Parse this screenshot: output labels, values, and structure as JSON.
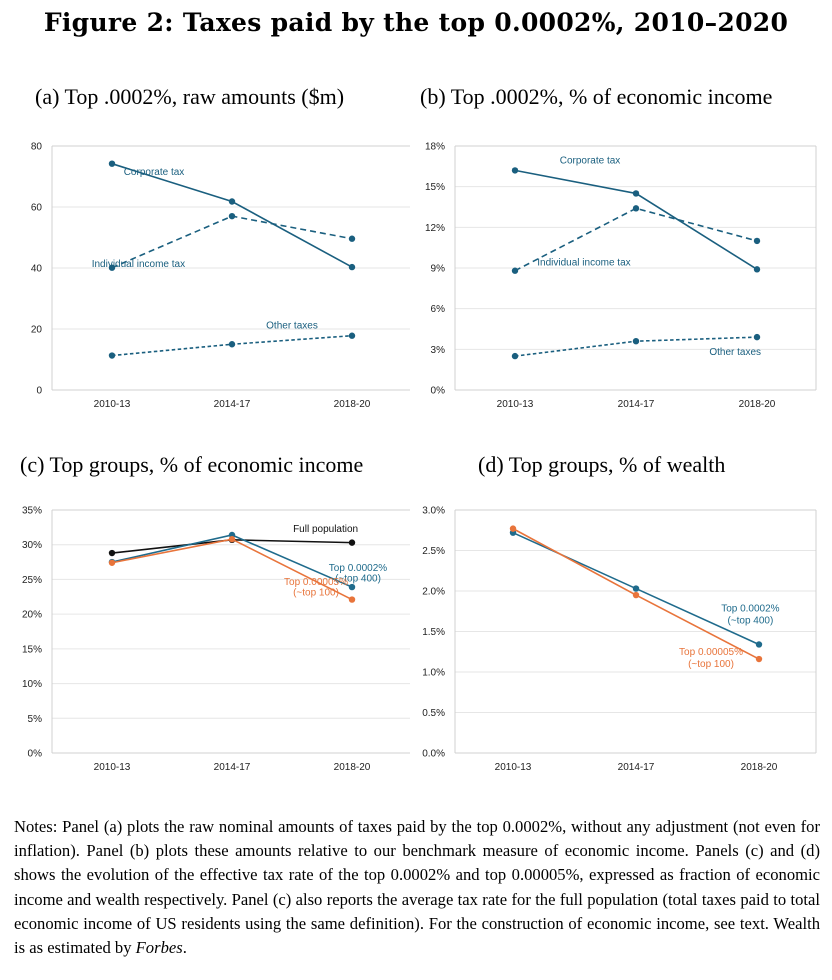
{
  "figure": {
    "title": "Figure 2: Taxes paid by the top 0.0002%, 2010–2020",
    "notes_prefix": "Notes: Panel (a) plots the raw nominal amounts of taxes paid by the top 0.0002%, without any adjustment (not even for inflation). Panel (b) plots these amounts relative to our benchmark measure of economic income. Panels (c) and (d) shows the evolution of the effective tax rate of the top 0.0002% and top 0.00005%, expressed as fraction of economic income and wealth respectively. Panel (c) also reports the average tax rate for the full population (total taxes paid to total economic income of US residents using the same definition). For the construction of economic income, see text. Wealth is as estimated by ",
    "notes_italic": "Forbes",
    "notes_suffix": "."
  },
  "colors": {
    "teal": "#1a5f7f",
    "blue": "#1f6b8c",
    "orange": "#e8743b",
    "black": "#111111",
    "grid": "#e6e6e6",
    "axis": "#d0d0d0"
  },
  "chart_data": [
    {
      "id": "a",
      "type": "line",
      "title": "(a) Top .0002%, raw amounts ($m)",
      "categories": [
        "2010-13",
        "2014-17",
        "2018-20"
      ],
      "ylim": [
        0,
        80
      ],
      "yticks": [
        0,
        20,
        40,
        60,
        80
      ],
      "ytick_labels": [
        "0",
        "20",
        "40",
        "60",
        "80"
      ],
      "grid": true,
      "series": [
        {
          "name": "Corporate tax",
          "values": [
            74.2,
            61.8,
            40.3
          ],
          "style": "solid",
          "color": "#1a5f7f"
        },
        {
          "name": "Individual income tax",
          "values": [
            40.1,
            57.0,
            49.6
          ],
          "style": "dashed",
          "color": "#1a5f7f"
        },
        {
          "name": "Other taxes",
          "values": [
            11.3,
            15.0,
            17.8
          ],
          "style": "dotted",
          "color": "#1a5f7f"
        }
      ],
      "labels": [
        {
          "text": "Corporate tax",
          "x": 1.35,
          "y": 70.5
        },
        {
          "text": "Individual income tax",
          "x": 1.22,
          "y": 40.3
        },
        {
          "text": "Other taxes",
          "x": 2.5,
          "y": 20.2
        }
      ]
    },
    {
      "id": "b",
      "type": "line",
      "title": "(b) Top .0002%, % of economic income",
      "categories": [
        "2010-13",
        "2014-17",
        "2018-20"
      ],
      "ylim": [
        0,
        18
      ],
      "yticks": [
        0,
        3,
        6,
        9,
        12,
        15,
        18
      ],
      "ytick_labels": [
        "0%",
        "3%",
        "6%",
        "9%",
        "12%",
        "15%",
        "18%"
      ],
      "grid": true,
      "series": [
        {
          "name": "Corporate tax",
          "values": [
            16.2,
            14.5,
            8.9
          ],
          "style": "solid",
          "color": "#1a5f7f"
        },
        {
          "name": "Individual income tax",
          "values": [
            8.8,
            13.4,
            11.0
          ],
          "style": "dashed",
          "color": "#1a5f7f"
        },
        {
          "name": "Other taxes",
          "values": [
            2.5,
            3.6,
            3.9
          ],
          "style": "dotted",
          "color": "#1a5f7f"
        }
      ],
      "labels": [
        {
          "text": "Corporate tax",
          "x": 1.62,
          "y": 16.7
        },
        {
          "text": "Individual income tax",
          "x": 1.57,
          "y": 9.2
        },
        {
          "text": "Other taxes",
          "x": 2.82,
          "y": 2.6
        }
      ]
    },
    {
      "id": "c",
      "type": "line",
      "title": "(c) Top groups, % of economic income",
      "categories": [
        "2010-13",
        "2014-17",
        "2018-20"
      ],
      "ylim": [
        0,
        35
      ],
      "yticks": [
        0,
        5,
        10,
        15,
        20,
        25,
        30,
        35
      ],
      "ytick_labels": [
        "0%",
        "5%",
        "10%",
        "15%",
        "20%",
        "25%",
        "30%",
        "35%"
      ],
      "grid": true,
      "series": [
        {
          "name": "Full population",
          "values": [
            28.8,
            30.7,
            30.3
          ],
          "style": "solid",
          "color": "#111111"
        },
        {
          "name": "Top 0.0002% (~top 400)",
          "values": [
            27.5,
            31.4,
            23.9
          ],
          "style": "solid",
          "color": "#1f6b8c"
        },
        {
          "name": "Top 0.00005% (~top 100)",
          "values": [
            27.4,
            30.8,
            22.1
          ],
          "style": "solid",
          "color": "#e8743b"
        }
      ],
      "labels": [
        {
          "text": "Full population",
          "x": 2.78,
          "y": 31.8,
          "color": "#111111"
        },
        {
          "text": "Top 0.0002%",
          "x": 3.05,
          "y": 26.2,
          "color": "#1f6b8c"
        },
        {
          "text": "(~top 400)",
          "x": 3.05,
          "y": 24.7,
          "color": "#1f6b8c"
        },
        {
          "text": "Top 0.00005%",
          "x": 2.7,
          "y": 24.2,
          "color": "#e8743b"
        },
        {
          "text": "(~top 100)",
          "x": 2.7,
          "y": 22.7,
          "color": "#e8743b"
        }
      ]
    },
    {
      "id": "d",
      "type": "line",
      "title": "(d) Top groups, % of wealth",
      "categories": [
        "2010-13",
        "2014-17",
        "2018-20"
      ],
      "ylim": [
        0,
        3.0
      ],
      "yticks": [
        0,
        0.5,
        1.0,
        1.5,
        2.0,
        2.5,
        3.0
      ],
      "ytick_labels": [
        "0.0%",
        "0.5%",
        "1.0%",
        "1.5%",
        "2.0%",
        "2.5%",
        "3.0%"
      ],
      "grid": true,
      "series": [
        {
          "name": "Top 0.0002% (~top 400)",
          "values": [
            2.72,
            2.03,
            1.34
          ],
          "style": "solid",
          "color": "#1f6b8c"
        },
        {
          "name": "Top 0.00005% (~top 100)",
          "values": [
            2.77,
            1.95,
            1.16
          ],
          "style": "solid",
          "color": "#e8743b"
        }
      ],
      "labels": [
        {
          "text": "Top 0.0002%",
          "x": 2.93,
          "y": 1.75,
          "color": "#1f6b8c"
        },
        {
          "text": "(~top 400)",
          "x": 2.93,
          "y": 1.6,
          "color": "#1f6b8c"
        },
        {
          "text": "Top 0.00005%",
          "x": 2.61,
          "y": 1.21,
          "color": "#e8743b"
        },
        {
          "text": "(~top 100)",
          "x": 2.61,
          "y": 1.06,
          "color": "#e8743b"
        }
      ]
    }
  ]
}
